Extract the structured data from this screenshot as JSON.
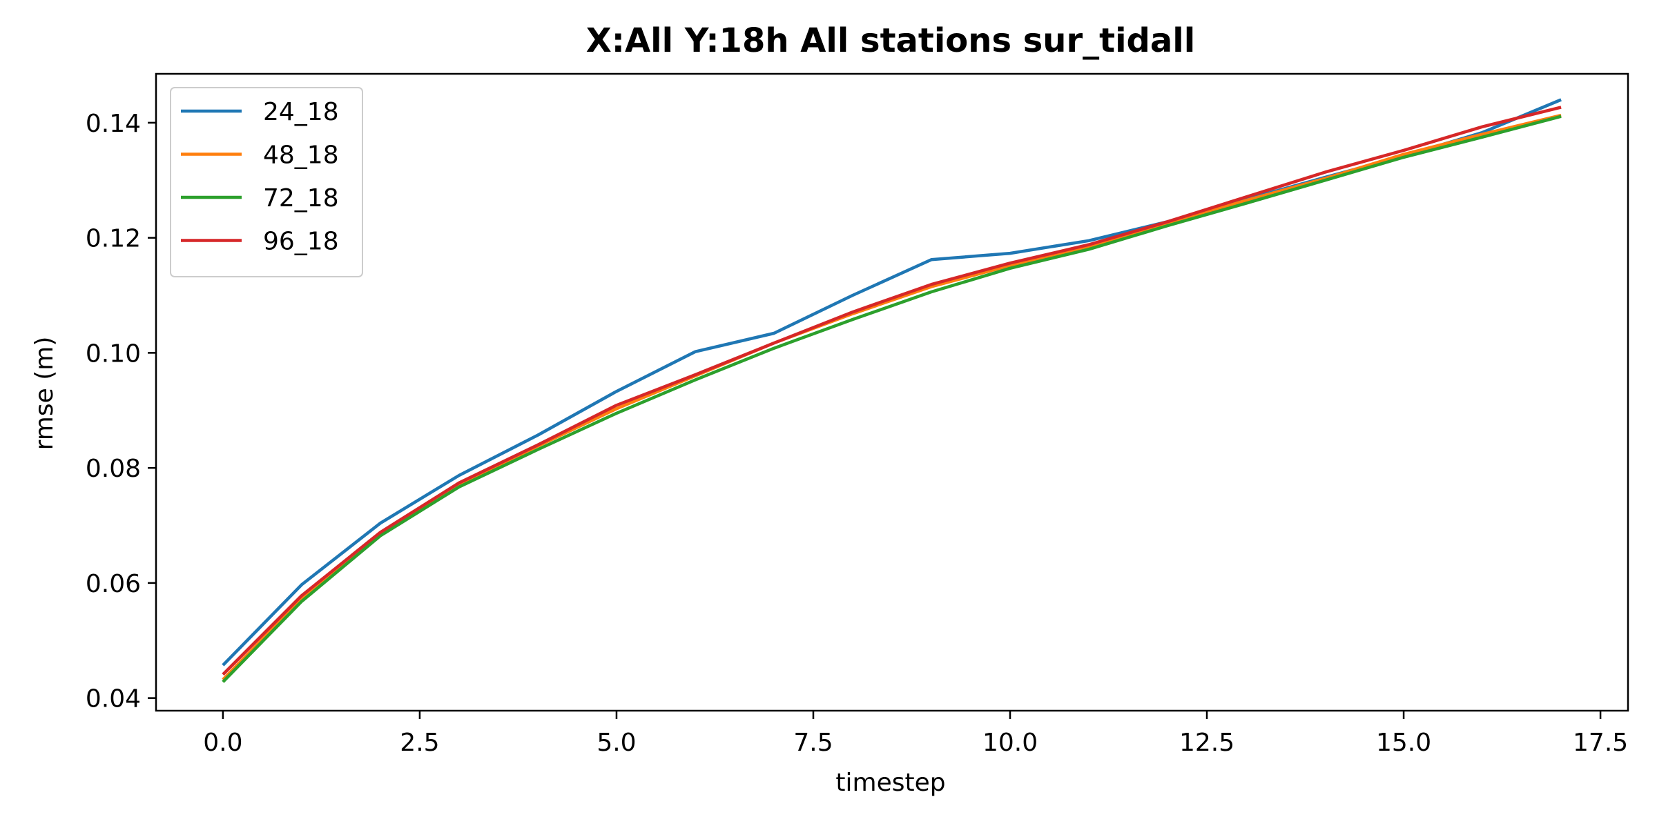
{
  "chart_data": {
    "type": "line",
    "title": "X:All   Y:18h   All stations   sur_tidall",
    "xlabel": "timestep",
    "ylabel": "rmse (m)",
    "xlim": [
      -0.85,
      17.85
    ],
    "ylim": [
      0.0378,
      0.1485
    ],
    "xticks": [
      0.0,
      2.5,
      5.0,
      7.5,
      10.0,
      12.5,
      15.0,
      17.5
    ],
    "xtick_labels": [
      "0.0",
      "2.5",
      "5.0",
      "7.5",
      "10.0",
      "12.5",
      "15.0",
      "17.5"
    ],
    "yticks": [
      0.04,
      0.06,
      0.08,
      0.1,
      0.12,
      0.14
    ],
    "ytick_labels": [
      "0.04",
      "0.06",
      "0.08",
      "0.10",
      "0.12",
      "0.14"
    ],
    "grid": false,
    "legend_position": "top-left",
    "x": [
      0,
      1,
      2,
      3,
      4,
      5,
      6,
      7,
      8,
      9,
      10,
      11,
      12,
      13,
      14,
      15,
      16,
      17
    ],
    "series": [
      {
        "name": "24_18",
        "color": "#1f77b4",
        "values": [
          0.0457,
          0.0597,
          0.0704,
          0.0787,
          0.0857,
          0.0933,
          0.1002,
          0.1034,
          0.11,
          0.1162,
          0.1173,
          0.1195,
          0.1228,
          0.1267,
          0.1305,
          0.1342,
          0.1383,
          0.144
        ]
      },
      {
        "name": "48_18",
        "color": "#ff7f0e",
        "values": [
          0.0432,
          0.0572,
          0.0686,
          0.0771,
          0.0838,
          0.0903,
          0.096,
          0.1017,
          0.1068,
          0.1115,
          0.1152,
          0.1185,
          0.1224,
          0.1265,
          0.1303,
          0.1345,
          0.138,
          0.1413
        ]
      },
      {
        "name": "72_18",
        "color": "#2ca02c",
        "values": [
          0.0428,
          0.0568,
          0.0682,
          0.0767,
          0.0832,
          0.0895,
          0.0953,
          0.1008,
          0.1058,
          0.1106,
          0.1147,
          0.118,
          0.1221,
          0.126,
          0.13,
          0.134,
          0.1375,
          0.1411
        ]
      },
      {
        "name": "96_18",
        "color": "#d62728",
        "values": [
          0.0441,
          0.0578,
          0.0688,
          0.0774,
          0.084,
          0.0909,
          0.0962,
          0.1017,
          0.1071,
          0.1119,
          0.1156,
          0.1188,
          0.1228,
          0.1271,
          0.1314,
          0.1352,
          0.1393,
          0.1427
        ]
      }
    ]
  }
}
